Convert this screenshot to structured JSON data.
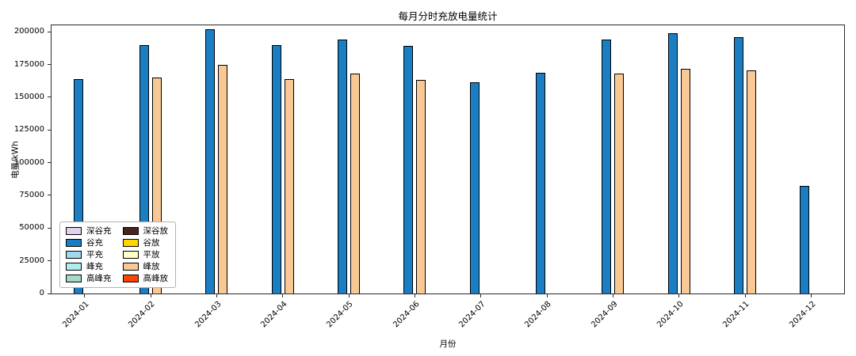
{
  "chart_data": {
    "type": "bar",
    "title": "每月分时充放电量统计",
    "xlabel": "月份",
    "ylabel": "电量/kWh",
    "categories": [
      "2024-01",
      "2024-02",
      "2024-03",
      "2024-04",
      "2024-05",
      "2024-06",
      "2024-07",
      "2024-08",
      "2024-09",
      "2024-10",
      "2024-11",
      "2024-12"
    ],
    "ylim": [
      0,
      205000
    ],
    "yticks": [
      0,
      25000,
      50000,
      75000,
      100000,
      125000,
      150000,
      175000,
      200000
    ],
    "grid": false,
    "legend": {
      "position": "lower left",
      "columns": 2
    },
    "series": [
      {
        "name": "深谷充",
        "color": "#ddd4ec",
        "values": [
          0,
          0,
          0,
          0,
          0,
          0,
          0,
          0,
          0,
          0,
          0,
          0
        ]
      },
      {
        "name": "谷充",
        "color": "#1b7ec2",
        "values": [
          164000,
          190000,
          202000,
          190000,
          194000,
          189500,
          161500,
          168500,
          194000,
          199000,
          196000,
          82000
        ]
      },
      {
        "name": "平充",
        "color": "#a0d8ef",
        "values": [
          0,
          0,
          0,
          0,
          0,
          0,
          0,
          0,
          0,
          0,
          0,
          0
        ]
      },
      {
        "name": "峰充",
        "color": "#afeeee",
        "values": [
          0,
          0,
          0,
          0,
          0,
          0,
          0,
          0,
          0,
          0,
          0,
          0
        ]
      },
      {
        "name": "高峰充",
        "color": "#a2d9c8",
        "values": [
          0,
          0,
          0,
          0,
          0,
          0,
          0,
          0,
          0,
          0,
          0,
          0
        ]
      },
      {
        "name": "深谷放",
        "color": "#46241b",
        "values": [
          0,
          0,
          0,
          0,
          0,
          0,
          0,
          0,
          0,
          0,
          0,
          0
        ]
      },
      {
        "name": "谷放",
        "color": "#ffd700",
        "values": [
          0,
          0,
          0,
          0,
          0,
          0,
          0,
          0,
          0,
          0,
          0,
          0
        ]
      },
      {
        "name": "平放",
        "color": "#ffffcc",
        "values": [
          0,
          0,
          0,
          0,
          0,
          0,
          0,
          0,
          0,
          0,
          0,
          0
        ]
      },
      {
        "name": "峰放",
        "color": "#f9c995",
        "values": [
          0,
          165000,
          175000,
          164000,
          168000,
          163500,
          0,
          0,
          168000,
          172000,
          170500,
          0
        ]
      },
      {
        "name": "高峰放",
        "color": "#ff4500",
        "values": [
          0,
          0,
          0,
          0,
          0,
          0,
          0,
          0,
          0,
          0,
          0,
          0
        ]
      }
    ]
  }
}
